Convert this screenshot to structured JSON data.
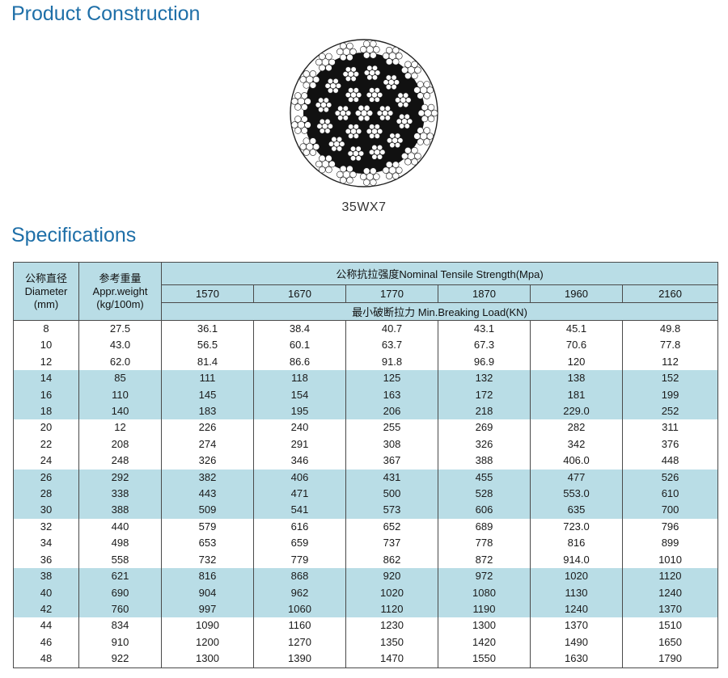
{
  "sections": {
    "construction_title": "Product Construction",
    "specs_title": "Specifications"
  },
  "diagram": {
    "caption": "35WX7",
    "colors": {
      "wire": "#ffffff",
      "outline": "#222222",
      "fill": "#111111"
    }
  },
  "table": {
    "header": {
      "diameter": {
        "cn": "公称直径",
        "en1": "Diameter",
        "en2": "(mm)"
      },
      "weight": {
        "cn": "参考重量",
        "en1": "Appr.weight",
        "en2": "(kg/100m)"
      },
      "strength_group": "公称抗拉强度Nominal Tensile Strength(Mpa)",
      "grades": [
        "1570",
        "1670",
        "1770",
        "1870",
        "1960",
        "2160"
      ],
      "load_label": "最小破断拉力 Min.Breaking Load(KN)"
    },
    "colors": {
      "header_bg": "#b9dde6",
      "shade_bg": "#b9dde6",
      "title_blue": "#1e6fa8"
    },
    "rows": [
      [
        "8",
        "27.5",
        "36.1",
        "38.4",
        "40.7",
        "43.1",
        "45.1",
        "49.8"
      ],
      [
        "10",
        "43.0",
        "56.5",
        "60.1",
        "63.7",
        "67.3",
        "70.6",
        "77.8"
      ],
      [
        "12",
        "62.0",
        "81.4",
        "86.6",
        "91.8",
        "96.9",
        "120",
        "112"
      ],
      [
        "14",
        "85",
        "111",
        "118",
        "125",
        "132",
        "138",
        "152"
      ],
      [
        "16",
        "110",
        "145",
        "154",
        "163",
        "172",
        "181",
        "199"
      ],
      [
        "18",
        "140",
        "183",
        "195",
        "206",
        "218",
        "229.0",
        "252"
      ],
      [
        "20",
        "12",
        "226",
        "240",
        "255",
        "269",
        "282",
        "311"
      ],
      [
        "22",
        "208",
        "274",
        "291",
        "308",
        "326",
        "342",
        "376"
      ],
      [
        "24",
        "248",
        "326",
        "346",
        "367",
        "388",
        "406.0",
        "448"
      ],
      [
        "26",
        "292",
        "382",
        "406",
        "431",
        "455",
        "477",
        "526"
      ],
      [
        "28",
        "338",
        "443",
        "471",
        "500",
        "528",
        "553.0",
        "610"
      ],
      [
        "30",
        "388",
        "509",
        "541",
        "573",
        "606",
        "635",
        "700"
      ],
      [
        "32",
        "440",
        "579",
        "616",
        "652",
        "689",
        "723.0",
        "796"
      ],
      [
        "34",
        "498",
        "653",
        "659",
        "737",
        "778",
        "816",
        "899"
      ],
      [
        "36",
        "558",
        "732",
        "779",
        "862",
        "872",
        "914.0",
        "1010"
      ],
      [
        "38",
        "621",
        "816",
        "868",
        "920",
        "972",
        "1020",
        "1120"
      ],
      [
        "40",
        "690",
        "904",
        "962",
        "1020",
        "1080",
        "1130",
        "1240"
      ],
      [
        "42",
        "760",
        "997",
        "1060",
        "1120",
        "1190",
        "1240",
        "1370"
      ],
      [
        "44",
        "834",
        "1090",
        "1160",
        "1230",
        "1300",
        "1370",
        "1510"
      ],
      [
        "46",
        "910",
        "1200",
        "1270",
        "1350",
        "1420",
        "1490",
        "1650"
      ],
      [
        "48",
        "922",
        "1300",
        "1390",
        "1470",
        "1550",
        "1630",
        "1790"
      ]
    ]
  }
}
